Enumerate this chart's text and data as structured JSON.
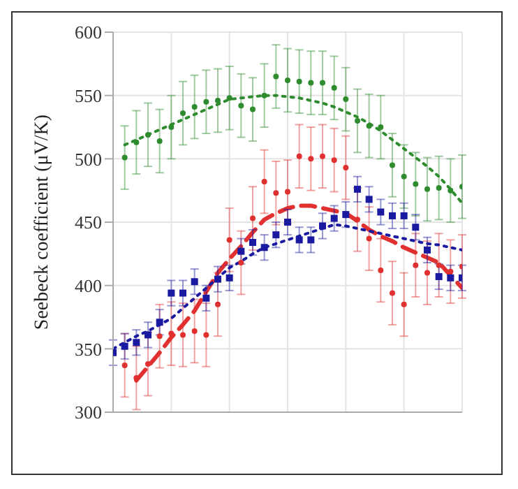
{
  "chart_data": {
    "type": "scatter",
    "ylabel": "Seebeck coefficient (μV/K)",
    "categories": [
      null,
      null,
      null,
      null,
      null,
      null,
      null,
      null,
      null,
      null,
      null,
      null,
      null,
      null,
      null,
      null,
      null,
      null,
      null,
      null,
      null,
      null,
      null,
      null,
      null,
      null,
      null,
      null,
      null,
      null,
      null
    ],
    "ylim": [
      300,
      600
    ],
    "yticks": [
      300,
      350,
      400,
      450,
      500,
      550,
      600
    ],
    "grid": true,
    "series": [
      {
        "color": "#2e8b2e",
        "marker": "circle",
        "values": [
          null,
          501,
          513,
          519,
          514,
          525,
          536,
          541,
          545,
          546,
          548,
          542,
          539,
          550,
          565,
          562,
          561,
          560,
          560,
          556,
          547,
          530,
          526,
          525,
          495,
          486,
          480,
          476,
          477,
          475,
          478
        ],
        "errors": [
          null,
          25,
          25,
          25,
          25,
          25,
          25,
          25,
          25,
          25,
          25,
          25,
          25,
          25,
          25,
          25,
          25,
          25,
          25,
          25,
          25,
          25,
          25,
          25,
          25,
          25,
          25,
          25,
          25,
          25,
          25
        ]
      },
      {
        "type": "line",
        "color": "#2e8b2e",
        "line_style": "dotted",
        "values": [
          null,
          511,
          515,
          519,
          523,
          527,
          531,
          535,
          539,
          543,
          547,
          548,
          549,
          550,
          550,
          549,
          548,
          546,
          544,
          541,
          537,
          533,
          528,
          522,
          515,
          508,
          501,
          494,
          486,
          476,
          465
        ]
      },
      {
        "color": "#e03030",
        "marker": "circle",
        "values": [
          null,
          337,
          327,
          338,
          360,
          362,
          361,
          364,
          361,
          385,
          436,
          418,
          453,
          482,
          473,
          474,
          502,
          500,
          502,
          499,
          493,
          452,
          437,
          412,
          394,
          385,
          416,
          410,
          416,
          411,
          415
        ],
        "errors": [
          null,
          25,
          25,
          25,
          25,
          25,
          25,
          25,
          25,
          25,
          25,
          25,
          25,
          25,
          25,
          25,
          25,
          25,
          25,
          25,
          25,
          25,
          25,
          25,
          25,
          25,
          25,
          25,
          25,
          25,
          25
        ]
      },
      {
        "type": "line",
        "color": "#e03030",
        "line_style": "dashed",
        "values": [
          null,
          null,
          325,
          336,
          347,
          359,
          369,
          380,
          395,
          410,
          421,
          431,
          442,
          452,
          457,
          461,
          463,
          463,
          461,
          459,
          457,
          451,
          444,
          439,
          435,
          430,
          426,
          422,
          418,
          408,
          398
        ]
      },
      {
        "color": "#1a1aa0",
        "marker": "square",
        "values": [
          347,
          352,
          355,
          361,
          371,
          394,
          394,
          403,
          390,
          405,
          406,
          427,
          434,
          430,
          440,
          450,
          436,
          436,
          447,
          453,
          456,
          476,
          468,
          458,
          455,
          455,
          446,
          428,
          407,
          406,
          406
        ],
        "errors": [
          10,
          10,
          10,
          10,
          10,
          10,
          10,
          10,
          10,
          10,
          10,
          10,
          10,
          10,
          10,
          10,
          10,
          10,
          10,
          10,
          10,
          10,
          10,
          10,
          10,
          10,
          10,
          10,
          10,
          10,
          10
        ]
      },
      {
        "type": "line",
        "color": "#1a1aa0",
        "line_style": "dotted",
        "values": [
          350,
          355,
          360,
          364,
          369,
          374,
          382,
          390,
          398,
          406,
          414,
          419,
          425,
          430,
          433,
          436,
          439,
          442,
          445,
          448,
          447,
          445,
          443,
          441,
          439,
          437,
          435,
          433,
          432,
          430,
          428
        ]
      }
    ]
  }
}
